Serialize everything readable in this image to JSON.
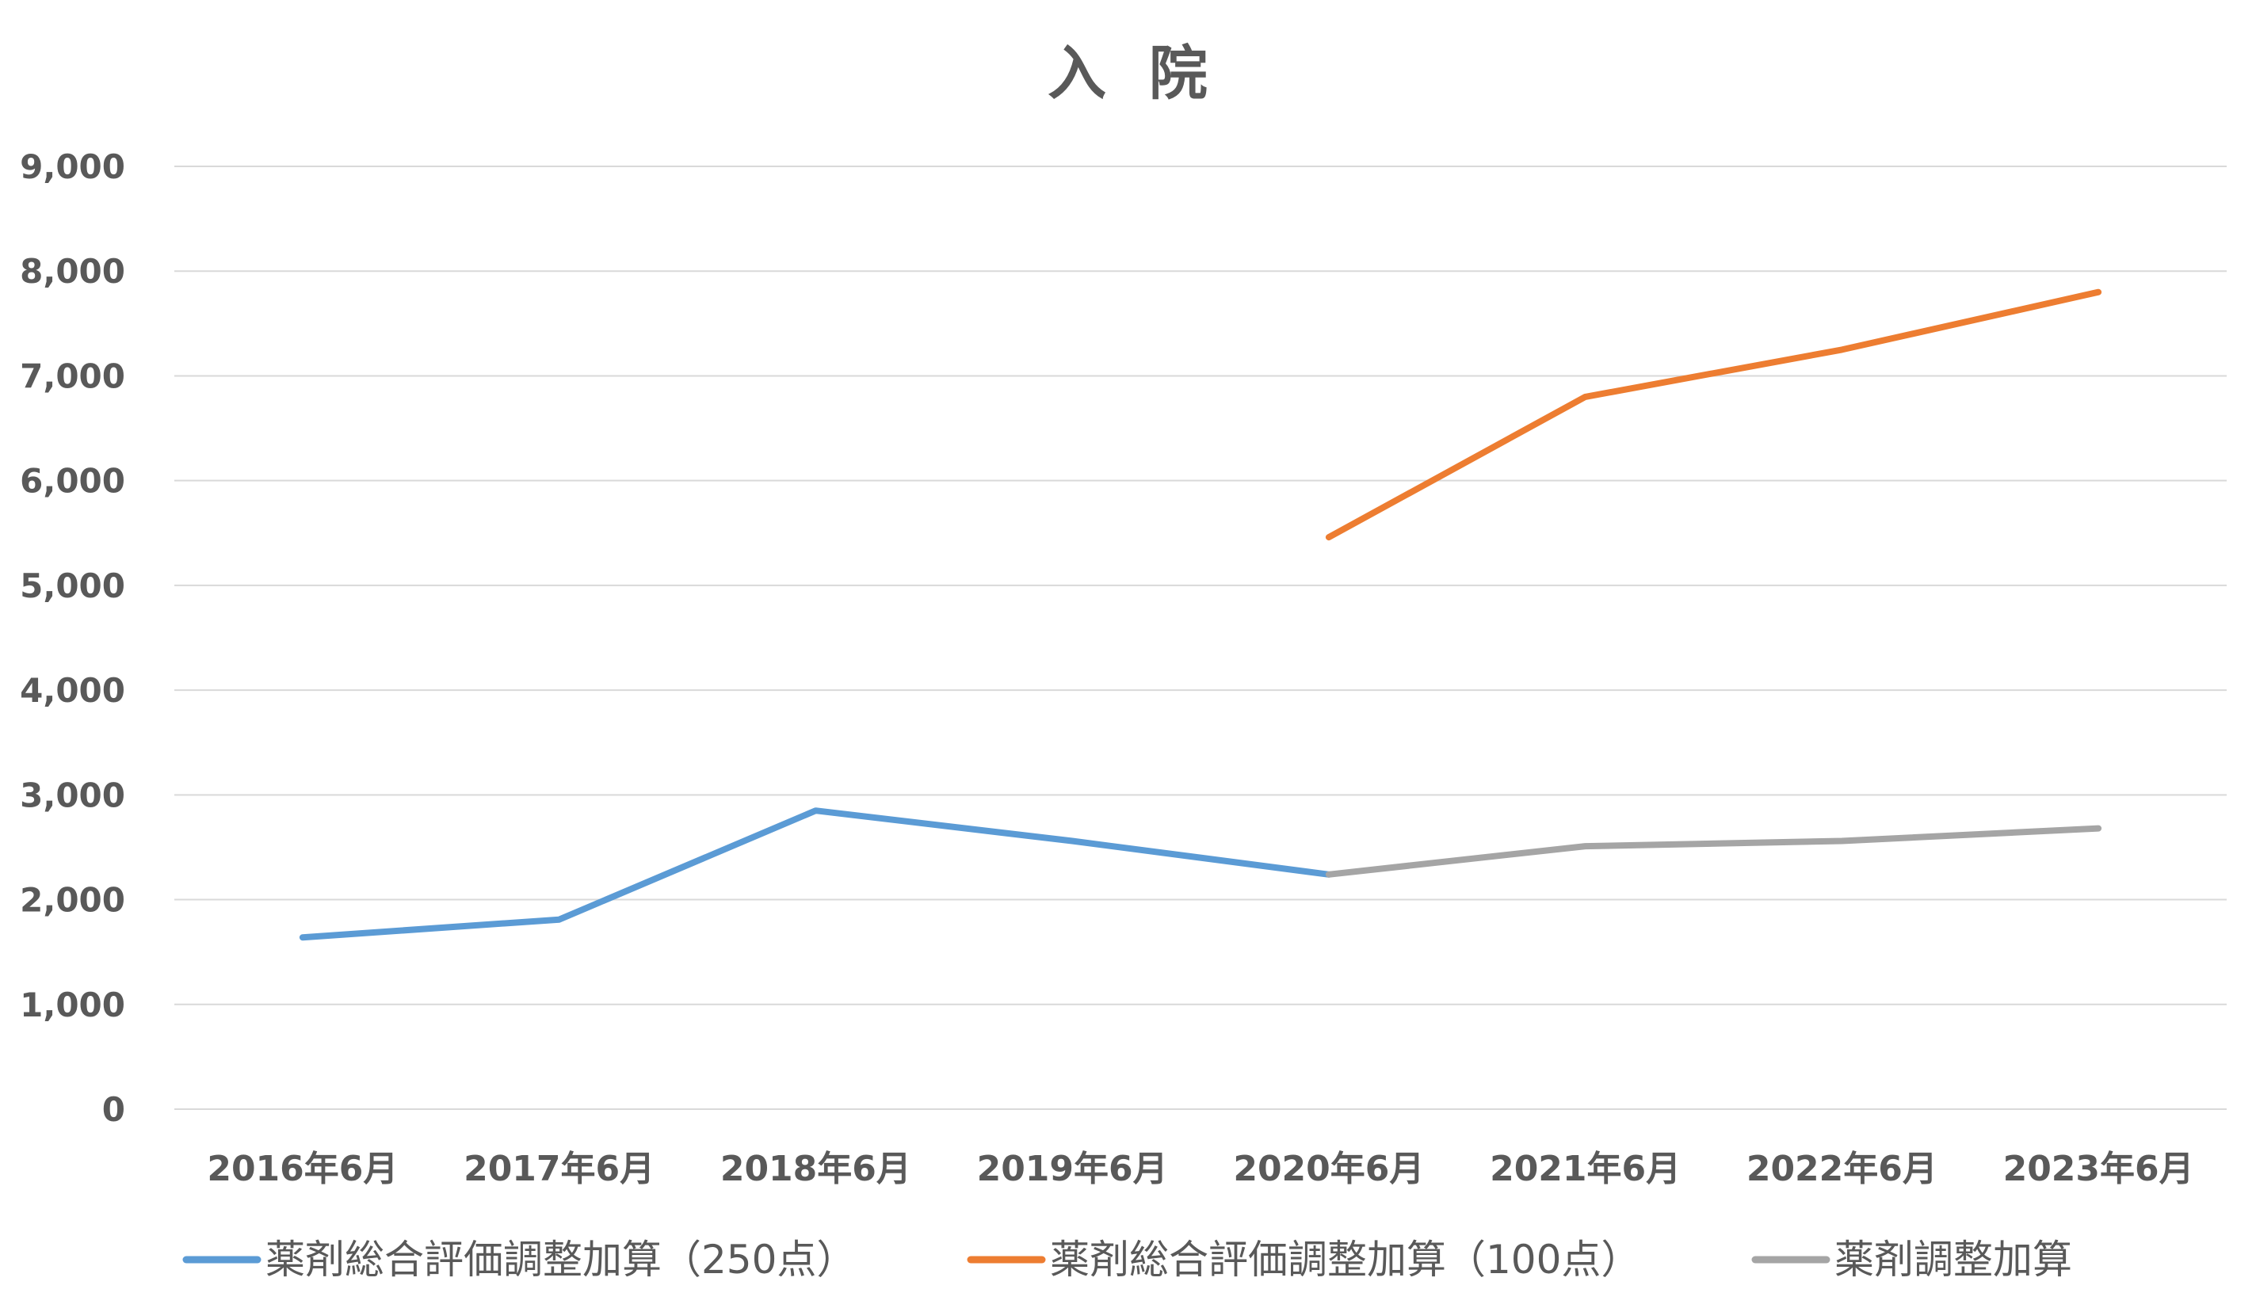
{
  "chart_data": {
    "type": "line",
    "title": "入 院",
    "xlabel": "",
    "ylabel": "",
    "categories": [
      "2016年6月",
      "2017年6月",
      "2018年6月",
      "2019年6月",
      "2020年6月",
      "2021年6月",
      "2022年6月",
      "2023年6月"
    ],
    "ylim": [
      0,
      9000
    ],
    "yticks": [
      "0",
      "1,000",
      "2,000",
      "3,000",
      "4,000",
      "5,000",
      "6,000",
      "7,000",
      "8,000",
      "9,000"
    ],
    "ytick_values": [
      0,
      1000,
      2000,
      3000,
      4000,
      5000,
      6000,
      7000,
      8000,
      9000
    ],
    "grid": true,
    "legend_position": "bottom",
    "series": [
      {
        "name": "薬剤総合評価調整加算（250点）",
        "color": "#5b9bd5",
        "values": [
          1640,
          1810,
          2850,
          2560,
          2240,
          null,
          null,
          null
        ]
      },
      {
        "name": "薬剤総合評価調整加算（100点）",
        "color": "#ed7d31",
        "values": [
          null,
          null,
          null,
          null,
          5460,
          6800,
          7250,
          7800
        ]
      },
      {
        "name": "薬剤調整加算",
        "color": "#a5a5a5",
        "values": [
          null,
          null,
          null,
          null,
          2240,
          2510,
          2560,
          2680
        ]
      }
    ]
  }
}
